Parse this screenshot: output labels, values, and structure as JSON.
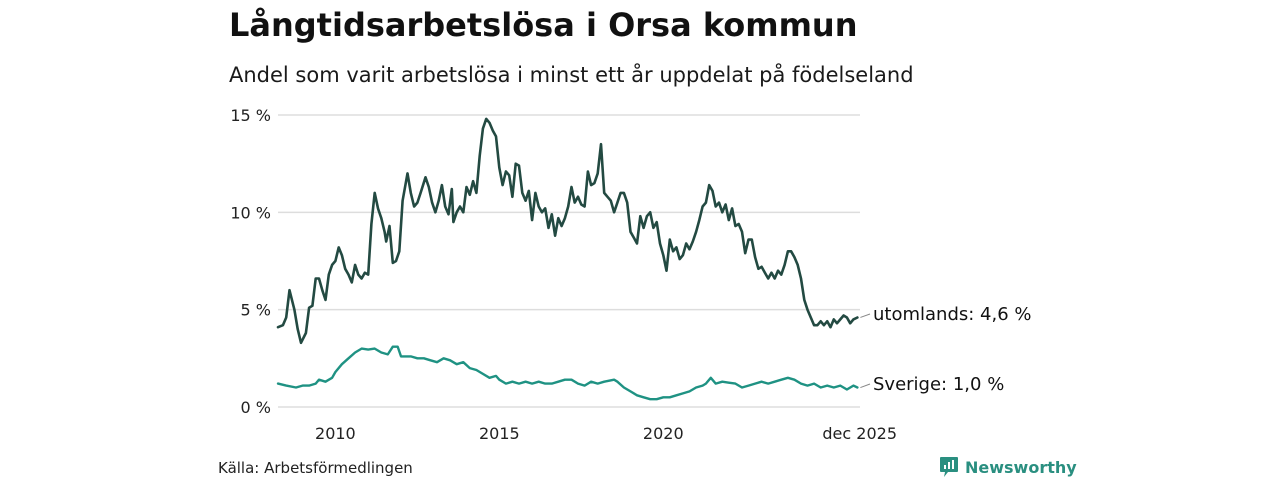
{
  "header": {
    "title": "Långtidsarbetslösa i Orsa kommun",
    "subtitle": "Andel som varit arbetslösa i minst ett år uppdelat på födelseland"
  },
  "footer": {
    "source": "Källa: Arbetsförmedlingen",
    "brand": "Newsworthy"
  },
  "colors": {
    "utomlands": "#234a42",
    "sverige": "#1f9283",
    "grid": "#dddddd",
    "brand": "#2a8f80"
  },
  "chart_data": {
    "type": "line",
    "title": "Långtidsarbetslösa i Orsa kommun",
    "subtitle": "Andel som varit arbetslösa i minst ett år uppdelat på födelseland",
    "x_range": [
      2008.25,
      2026.0
    ],
    "ylim": [
      0,
      15
    ],
    "y_ticks": [
      0,
      5,
      10,
      15
    ],
    "y_tick_labels": [
      "0 %",
      "5 %",
      "10 %",
      "15 %"
    ],
    "x_ticks": [
      2010,
      2015,
      2020,
      2025.917
    ],
    "x_tick_labels": [
      "2010",
      "2015",
      "2020",
      "dec 2025"
    ],
    "grid": "horizontal",
    "series": [
      {
        "name": "utomlands",
        "end_label": "utomlands: 4,6 %",
        "points": [
          [
            2008.25,
            4.1
          ],
          [
            2008.4,
            4.2
          ],
          [
            2008.5,
            4.6
          ],
          [
            2008.6,
            6.0
          ],
          [
            2008.75,
            5.0
          ],
          [
            2008.85,
            4.0
          ],
          [
            2008.95,
            3.3
          ],
          [
            2009.1,
            3.8
          ],
          [
            2009.2,
            5.1
          ],
          [
            2009.3,
            5.2
          ],
          [
            2009.4,
            6.6
          ],
          [
            2009.5,
            6.6
          ],
          [
            2009.6,
            6.0
          ],
          [
            2009.7,
            5.5
          ],
          [
            2009.8,
            6.8
          ],
          [
            2009.9,
            7.3
          ],
          [
            2010.0,
            7.5
          ],
          [
            2010.1,
            8.2
          ],
          [
            2010.2,
            7.8
          ],
          [
            2010.3,
            7.1
          ],
          [
            2010.4,
            6.8
          ],
          [
            2010.5,
            6.4
          ],
          [
            2010.6,
            7.3
          ],
          [
            2010.7,
            6.8
          ],
          [
            2010.8,
            6.6
          ],
          [
            2010.9,
            6.9
          ],
          [
            2011.0,
            6.8
          ],
          [
            2011.1,
            9.4
          ],
          [
            2011.2,
            11.0
          ],
          [
            2011.3,
            10.2
          ],
          [
            2011.4,
            9.7
          ],
          [
            2011.5,
            9.0
          ],
          [
            2011.55,
            8.5
          ],
          [
            2011.65,
            9.3
          ],
          [
            2011.75,
            7.4
          ],
          [
            2011.85,
            7.5
          ],
          [
            2011.95,
            8.0
          ],
          [
            2012.05,
            10.6
          ],
          [
            2012.2,
            12.0
          ],
          [
            2012.3,
            11.0
          ],
          [
            2012.4,
            10.3
          ],
          [
            2012.5,
            10.5
          ],
          [
            2012.6,
            11.0
          ],
          [
            2012.75,
            11.8
          ],
          [
            2012.85,
            11.3
          ],
          [
            2012.95,
            10.5
          ],
          [
            2013.05,
            10.0
          ],
          [
            2013.15,
            10.6
          ],
          [
            2013.25,
            11.4
          ],
          [
            2013.35,
            10.3
          ],
          [
            2013.45,
            9.9
          ],
          [
            2013.55,
            11.2
          ],
          [
            2013.6,
            9.5
          ],
          [
            2013.7,
            10.0
          ],
          [
            2013.8,
            10.3
          ],
          [
            2013.9,
            10.0
          ],
          [
            2014.0,
            11.3
          ],
          [
            2014.1,
            10.9
          ],
          [
            2014.2,
            11.6
          ],
          [
            2014.3,
            11.0
          ],
          [
            2014.4,
            12.9
          ],
          [
            2014.5,
            14.3
          ],
          [
            2014.6,
            14.8
          ],
          [
            2014.7,
            14.6
          ],
          [
            2014.8,
            14.2
          ],
          [
            2014.9,
            13.9
          ],
          [
            2015.0,
            12.3
          ],
          [
            2015.1,
            11.4
          ],
          [
            2015.2,
            12.1
          ],
          [
            2015.3,
            11.9
          ],
          [
            2015.4,
            10.8
          ],
          [
            2015.5,
            12.5
          ],
          [
            2015.6,
            12.4
          ],
          [
            2015.7,
            11.0
          ],
          [
            2015.8,
            10.6
          ],
          [
            2015.9,
            11.1
          ],
          [
            2016.0,
            9.6
          ],
          [
            2016.1,
            11.0
          ],
          [
            2016.2,
            10.3
          ],
          [
            2016.3,
            10.0
          ],
          [
            2016.4,
            10.2
          ],
          [
            2016.5,
            9.2
          ],
          [
            2016.6,
            9.9
          ],
          [
            2016.7,
            8.8
          ],
          [
            2016.8,
            9.7
          ],
          [
            2016.9,
            9.3
          ],
          [
            2017.0,
            9.7
          ],
          [
            2017.1,
            10.3
          ],
          [
            2017.2,
            11.3
          ],
          [
            2017.3,
            10.5
          ],
          [
            2017.4,
            10.8
          ],
          [
            2017.5,
            10.4
          ],
          [
            2017.6,
            10.3
          ],
          [
            2017.7,
            12.1
          ],
          [
            2017.8,
            11.4
          ],
          [
            2017.9,
            11.5
          ],
          [
            2018.0,
            12.0
          ],
          [
            2018.1,
            13.5
          ],
          [
            2018.2,
            11.0
          ],
          [
            2018.3,
            10.8
          ],
          [
            2018.4,
            10.6
          ],
          [
            2018.5,
            10.0
          ],
          [
            2018.6,
            10.5
          ],
          [
            2018.7,
            11.0
          ],
          [
            2018.8,
            11.0
          ],
          [
            2018.9,
            10.5
          ],
          [
            2019.0,
            9.0
          ],
          [
            2019.1,
            8.7
          ],
          [
            2019.2,
            8.4
          ],
          [
            2019.3,
            9.8
          ],
          [
            2019.4,
            9.2
          ],
          [
            2019.5,
            9.8
          ],
          [
            2019.6,
            10.0
          ],
          [
            2019.7,
            9.2
          ],
          [
            2019.8,
            9.5
          ],
          [
            2019.9,
            8.4
          ],
          [
            2020.0,
            7.8
          ],
          [
            2020.1,
            7.0
          ],
          [
            2020.2,
            8.6
          ],
          [
            2020.3,
            8.0
          ],
          [
            2020.4,
            8.2
          ],
          [
            2020.5,
            7.6
          ],
          [
            2020.6,
            7.8
          ],
          [
            2020.7,
            8.4
          ],
          [
            2020.8,
            8.1
          ],
          [
            2020.9,
            8.5
          ],
          [
            2021.0,
            9.0
          ],
          [
            2021.1,
            9.6
          ],
          [
            2021.2,
            10.3
          ],
          [
            2021.3,
            10.5
          ],
          [
            2021.4,
            11.4
          ],
          [
            2021.5,
            11.1
          ],
          [
            2021.6,
            10.3
          ],
          [
            2021.7,
            10.5
          ],
          [
            2021.8,
            10.0
          ],
          [
            2021.9,
            10.4
          ],
          [
            2022.0,
            9.6
          ],
          [
            2022.1,
            10.2
          ],
          [
            2022.2,
            9.3
          ],
          [
            2022.3,
            9.4
          ],
          [
            2022.4,
            9.0
          ],
          [
            2022.5,
            7.9
          ],
          [
            2022.6,
            8.6
          ],
          [
            2022.7,
            8.6
          ],
          [
            2022.8,
            7.7
          ],
          [
            2022.9,
            7.1
          ],
          [
            2023.0,
            7.2
          ],
          [
            2023.1,
            6.9
          ],
          [
            2023.2,
            6.6
          ],
          [
            2023.3,
            6.9
          ],
          [
            2023.4,
            6.6
          ],
          [
            2023.5,
            7.0
          ],
          [
            2023.6,
            6.8
          ],
          [
            2023.7,
            7.3
          ],
          [
            2023.8,
            8.0
          ],
          [
            2023.9,
            8.0
          ],
          [
            2024.0,
            7.7
          ],
          [
            2024.1,
            7.3
          ],
          [
            2024.2,
            6.6
          ],
          [
            2024.3,
            5.5
          ],
          [
            2024.4,
            5.0
          ],
          [
            2024.5,
            4.6
          ],
          [
            2024.6,
            4.2
          ],
          [
            2024.7,
            4.2
          ],
          [
            2024.8,
            4.4
          ],
          [
            2024.9,
            4.2
          ],
          [
            2025.0,
            4.4
          ],
          [
            2025.1,
            4.1
          ],
          [
            2025.2,
            4.5
          ],
          [
            2025.3,
            4.3
          ],
          [
            2025.4,
            4.5
          ],
          [
            2025.5,
            4.7
          ],
          [
            2025.6,
            4.6
          ],
          [
            2025.7,
            4.3
          ],
          [
            2025.8,
            4.5
          ],
          [
            2025.92,
            4.6
          ]
        ]
      },
      {
        "name": "Sverige",
        "end_label": "Sverige: 1,0 %",
        "points": [
          [
            2008.25,
            1.2
          ],
          [
            2008.5,
            1.1
          ],
          [
            2008.8,
            1.0
          ],
          [
            2009.0,
            1.1
          ],
          [
            2009.2,
            1.1
          ],
          [
            2009.4,
            1.2
          ],
          [
            2009.5,
            1.4
          ],
          [
            2009.7,
            1.3
          ],
          [
            2009.9,
            1.5
          ],
          [
            2010.0,
            1.8
          ],
          [
            2010.2,
            2.2
          ],
          [
            2010.4,
            2.5
          ],
          [
            2010.6,
            2.8
          ],
          [
            2010.8,
            3.0
          ],
          [
            2011.0,
            2.95
          ],
          [
            2011.2,
            3.0
          ],
          [
            2011.4,
            2.8
          ],
          [
            2011.6,
            2.7
          ],
          [
            2011.75,
            3.1
          ],
          [
            2011.9,
            3.1
          ],
          [
            2012.0,
            2.6
          ],
          [
            2012.3,
            2.6
          ],
          [
            2012.5,
            2.5
          ],
          [
            2012.7,
            2.5
          ],
          [
            2012.9,
            2.4
          ],
          [
            2013.1,
            2.3
          ],
          [
            2013.3,
            2.5
          ],
          [
            2013.5,
            2.4
          ],
          [
            2013.7,
            2.2
          ],
          [
            2013.9,
            2.3
          ],
          [
            2014.1,
            2.0
          ],
          [
            2014.3,
            1.9
          ],
          [
            2014.5,
            1.7
          ],
          [
            2014.7,
            1.5
          ],
          [
            2014.9,
            1.6
          ],
          [
            2015.0,
            1.4
          ],
          [
            2015.2,
            1.2
          ],
          [
            2015.4,
            1.3
          ],
          [
            2015.6,
            1.2
          ],
          [
            2015.8,
            1.3
          ],
          [
            2016.0,
            1.2
          ],
          [
            2016.2,
            1.3
          ],
          [
            2016.4,
            1.2
          ],
          [
            2016.6,
            1.2
          ],
          [
            2016.8,
            1.3
          ],
          [
            2017.0,
            1.4
          ],
          [
            2017.2,
            1.4
          ],
          [
            2017.4,
            1.2
          ],
          [
            2017.6,
            1.1
          ],
          [
            2017.8,
            1.3
          ],
          [
            2018.0,
            1.2
          ],
          [
            2018.2,
            1.3
          ],
          [
            2018.5,
            1.4
          ],
          [
            2018.6,
            1.3
          ],
          [
            2018.8,
            1.0
          ],
          [
            2019.0,
            0.8
          ],
          [
            2019.2,
            0.6
          ],
          [
            2019.4,
            0.5
          ],
          [
            2019.6,
            0.4
          ],
          [
            2019.8,
            0.4
          ],
          [
            2020.0,
            0.5
          ],
          [
            2020.2,
            0.5
          ],
          [
            2020.4,
            0.6
          ],
          [
            2020.6,
            0.7
          ],
          [
            2020.8,
            0.8
          ],
          [
            2021.0,
            1.0
          ],
          [
            2021.2,
            1.1
          ],
          [
            2021.3,
            1.2
          ],
          [
            2021.45,
            1.5
          ],
          [
            2021.6,
            1.2
          ],
          [
            2021.8,
            1.3
          ],
          [
            2022.0,
            1.25
          ],
          [
            2022.2,
            1.2
          ],
          [
            2022.4,
            1.0
          ],
          [
            2022.6,
            1.1
          ],
          [
            2022.8,
            1.2
          ],
          [
            2023.0,
            1.3
          ],
          [
            2023.2,
            1.2
          ],
          [
            2023.4,
            1.3
          ],
          [
            2023.6,
            1.4
          ],
          [
            2023.8,
            1.5
          ],
          [
            2024.0,
            1.4
          ],
          [
            2024.2,
            1.2
          ],
          [
            2024.4,
            1.1
          ],
          [
            2024.6,
            1.2
          ],
          [
            2024.8,
            1.0
          ],
          [
            2025.0,
            1.1
          ],
          [
            2025.2,
            1.0
          ],
          [
            2025.4,
            1.1
          ],
          [
            2025.6,
            0.9
          ],
          [
            2025.8,
            1.1
          ],
          [
            2025.92,
            1.0
          ]
        ]
      }
    ]
  }
}
